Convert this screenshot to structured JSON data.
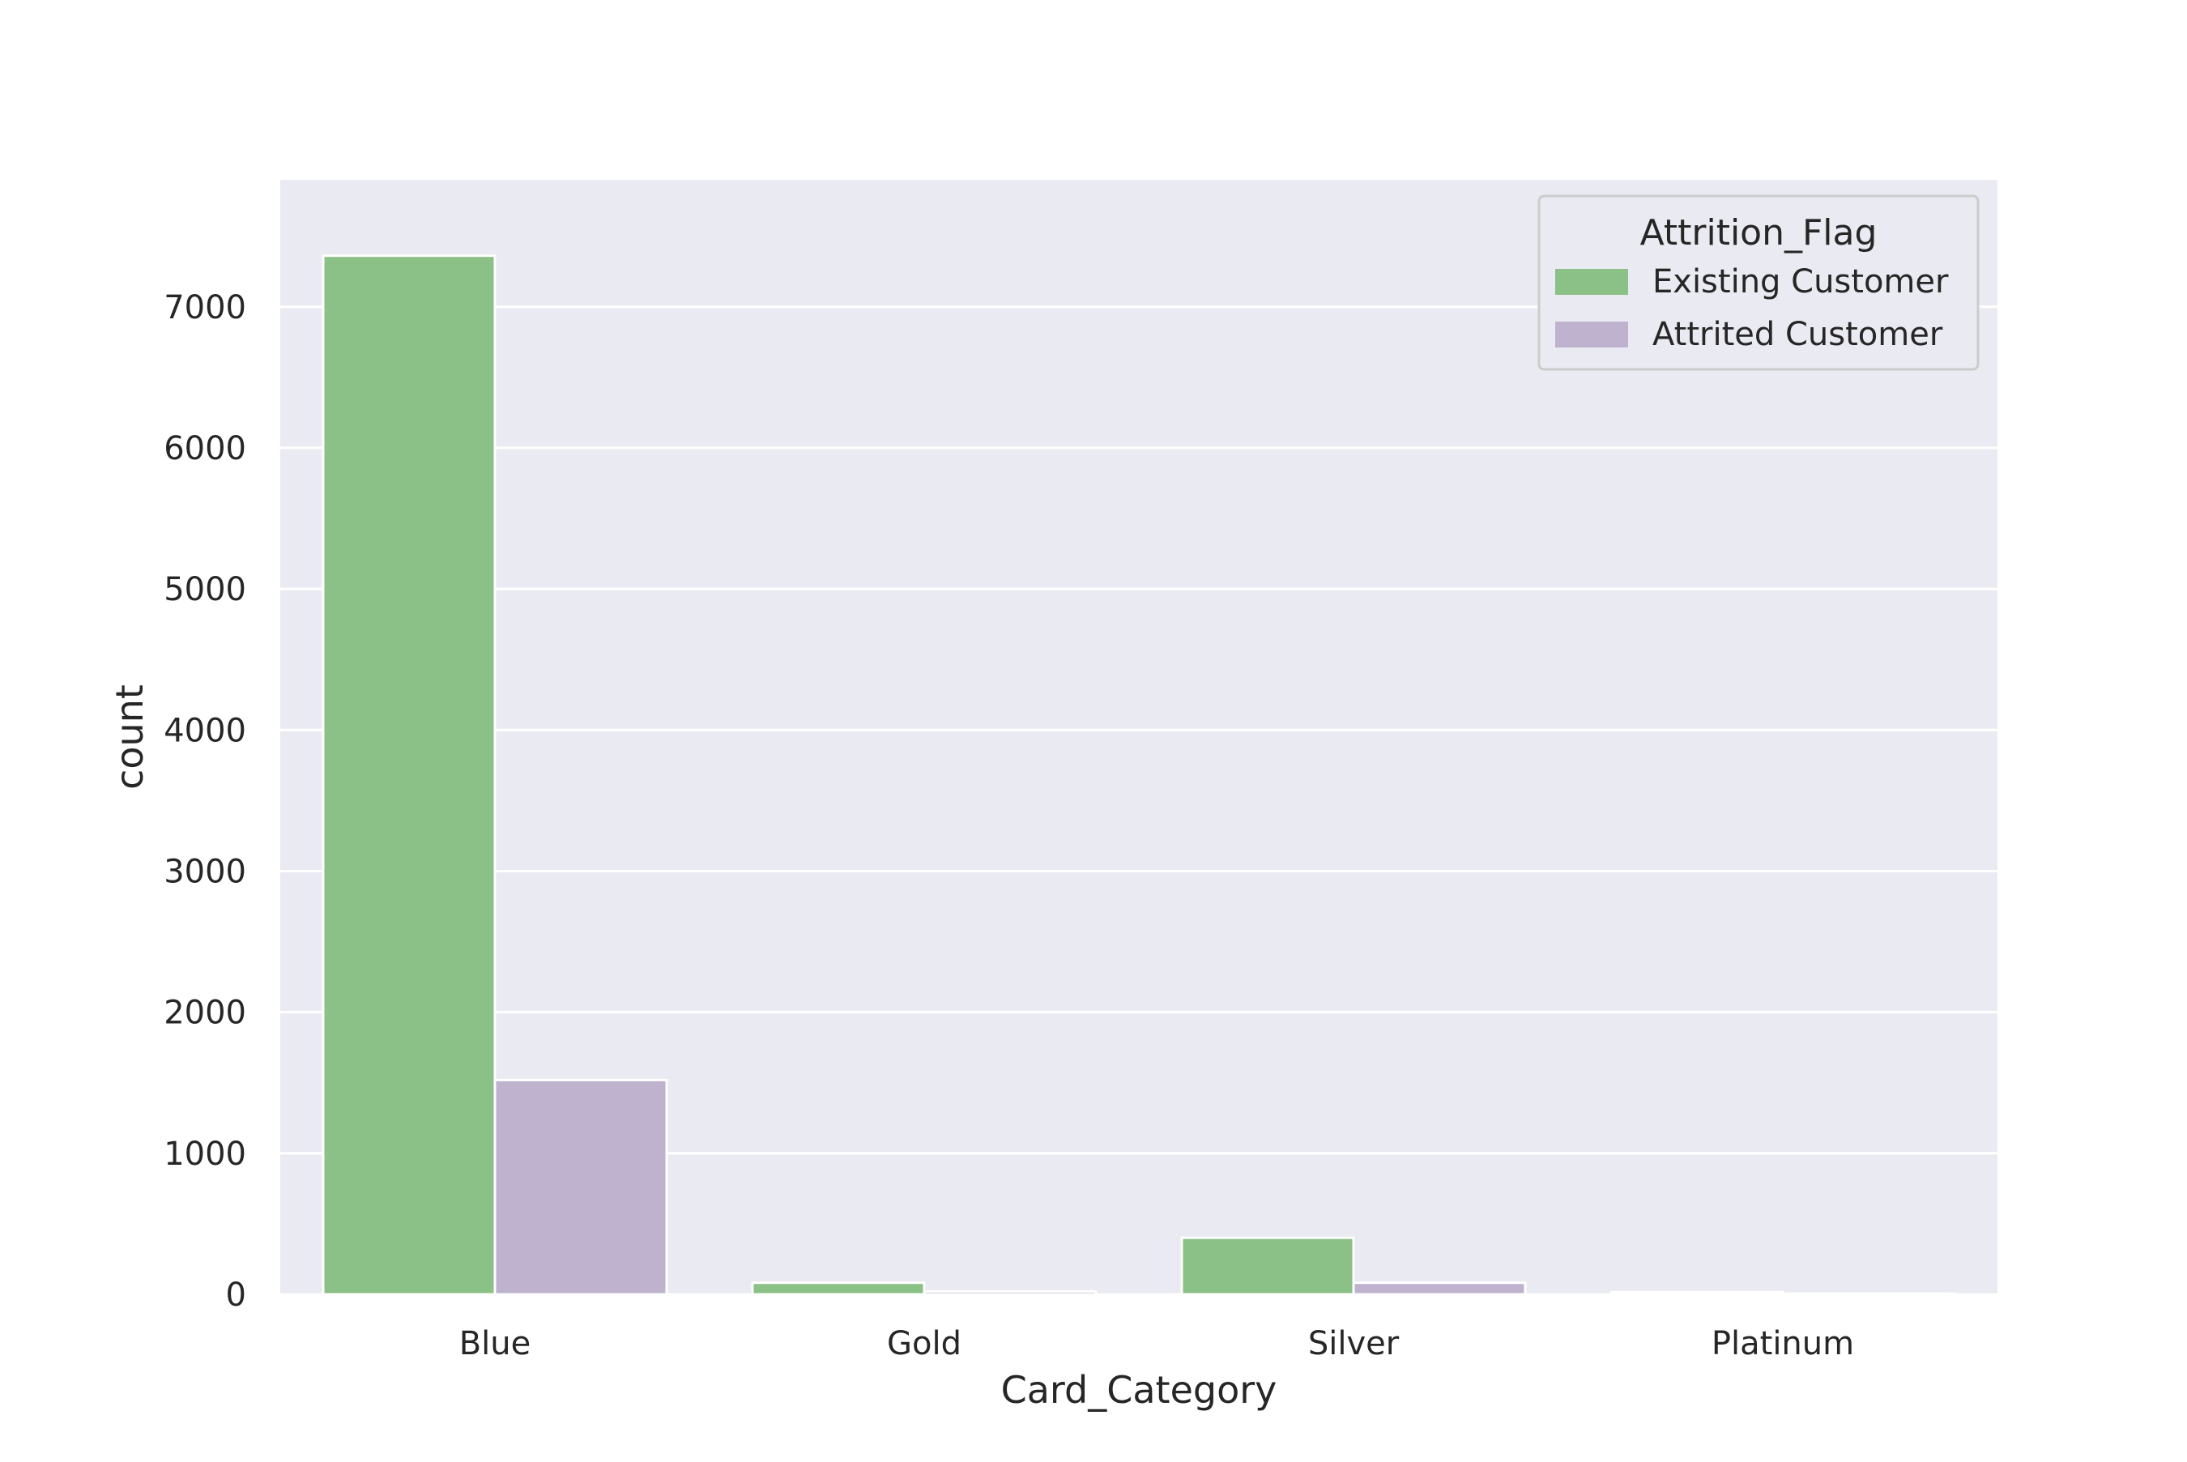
{
  "chart_data": {
    "type": "bar",
    "title": "",
    "xlabel": "Card_Category",
    "ylabel": "count",
    "categories": [
      "Blue",
      "Gold",
      "Silver",
      "Platinum"
    ],
    "series": [
      {
        "name": "Existing Customer",
        "color": "#8bc086",
        "values": [
          7362,
          82,
          401,
          15
        ]
      },
      {
        "name": "Attrited Customer",
        "color": "#bfb2cf",
        "values": [
          1519,
          21,
          82,
          5
        ]
      }
    ],
    "yticks": [
      0,
      1000,
      2000,
      3000,
      4000,
      5000,
      6000,
      7000
    ],
    "ylim": [
      0,
      7900
    ],
    "grid": true,
    "background": "#eaeaf2",
    "legend": {
      "title": "Attrition_Flag",
      "position": "top-right"
    }
  }
}
